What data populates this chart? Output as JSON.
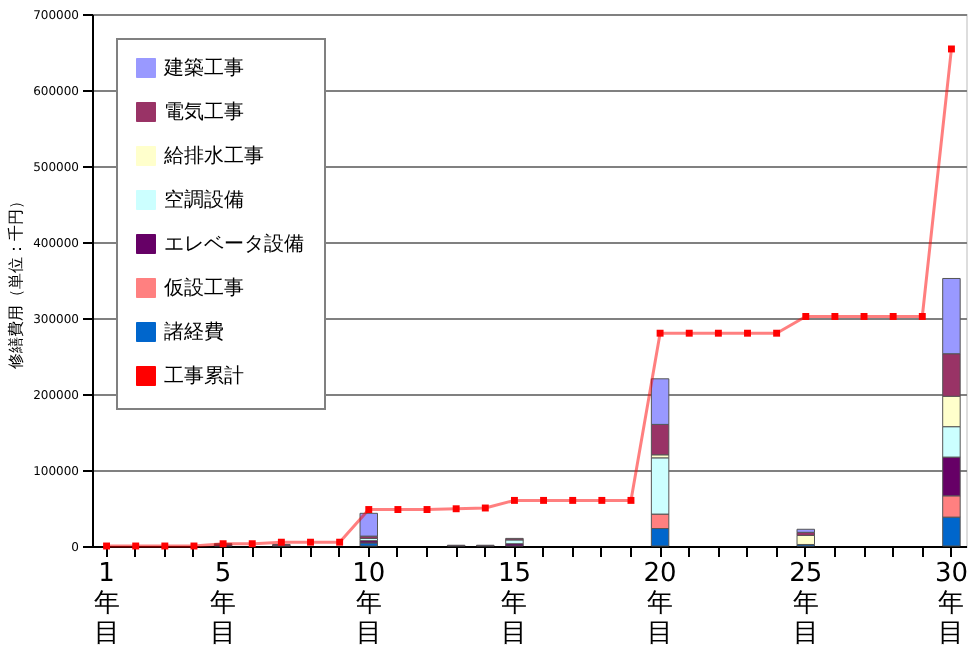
{
  "chart_data": {
    "type": "bar",
    "stacked": true,
    "ylabel": "修繕費用（単位：千円）",
    "categories": [
      "1年目",
      null,
      null,
      null,
      "5年目",
      null,
      null,
      null,
      null,
      "10年目",
      null,
      null,
      null,
      null,
      "15年目",
      null,
      null,
      null,
      null,
      "20年目",
      null,
      null,
      null,
      null,
      "25年目",
      null,
      null,
      null,
      null,
      "30年目"
    ],
    "series": [
      {
        "name": "諸経費",
        "color": "#0066cc",
        "values": [
          null,
          null,
          null,
          null,
          null,
          null,
          null,
          null,
          null,
          4000,
          null,
          null,
          null,
          null,
          null,
          null,
          null,
          null,
          null,
          23000,
          null,
          null,
          null,
          null,
          2000,
          null,
          null,
          null,
          null,
          38000
        ]
      },
      {
        "name": "仮設工事",
        "color": "#ff8080",
        "values": [
          null,
          null,
          null,
          null,
          null,
          null,
          null,
          null,
          null,
          null,
          null,
          null,
          null,
          null,
          null,
          null,
          null,
          null,
          null,
          19000,
          null,
          null,
          null,
          null,
          null,
          null,
          null,
          null,
          null,
          28000
        ]
      },
      {
        "name": "エレベータ設備",
        "color": "#660066",
        "values": [
          null,
          null,
          null,
          null,
          2000,
          null,
          null,
          null,
          null,
          3000,
          null,
          null,
          1000,
          1000,
          3000,
          null,
          null,
          null,
          null,
          null,
          null,
          null,
          null,
          null,
          null,
          null,
          null,
          null,
          null,
          51000
        ]
      },
      {
        "name": "空調設備",
        "color": "#ccffff",
        "values": [
          null,
          null,
          null,
          null,
          null,
          null,
          null,
          null,
          null,
          3000,
          null,
          null,
          null,
          null,
          5000,
          null,
          null,
          null,
          null,
          74000,
          null,
          null,
          null,
          null,
          null,
          null,
          null,
          null,
          null,
          40000
        ]
      },
      {
        "name": "給排水工事",
        "color": "#ffffcc",
        "values": [
          null,
          null,
          null,
          null,
          null,
          null,
          null,
          null,
          null,
          null,
          null,
          null,
          null,
          null,
          null,
          null,
          null,
          null,
          null,
          4000,
          null,
          null,
          null,
          null,
          12000,
          null,
          null,
          null,
          null,
          40000
        ]
      },
      {
        "name": "電気工事",
        "color": "#993366",
        "values": [
          null,
          null,
          null,
          null,
          1000,
          null,
          2000,
          null,
          null,
          3000,
          null,
          null,
          null,
          null,
          2000,
          null,
          null,
          null,
          null,
          40000,
          null,
          null,
          null,
          null,
          4000,
          null,
          null,
          null,
          null,
          56000
        ]
      },
      {
        "name": "建築工事",
        "color": "#9999ff",
        "values": [
          null,
          null,
          null,
          null,
          null,
          null,
          null,
          null,
          null,
          30000,
          null,
          null,
          null,
          null,
          null,
          null,
          null,
          null,
          null,
          60000,
          null,
          null,
          null,
          null,
          4000,
          null,
          null,
          null,
          null,
          99000
        ]
      },
      {
        "name": "工事累計",
        "type": "line",
        "marker": "square",
        "color": "#ff0000",
        "values": [
          0,
          0,
          0,
          0,
          3000,
          3000,
          5000,
          5000,
          5000,
          48000,
          48000,
          48000,
          49000,
          50000,
          60000,
          60000,
          60000,
          60000,
          60000,
          280000,
          280000,
          280000,
          280000,
          280000,
          302000,
          302000,
          302000,
          302000,
          302000,
          654000
        ]
      }
    ],
    "ylim": [
      0,
      700000
    ],
    "yticks": [
      0,
      100000,
      200000,
      300000,
      400000,
      500000,
      600000,
      700000
    ],
    "grid": "y",
    "legend": "top left"
  }
}
